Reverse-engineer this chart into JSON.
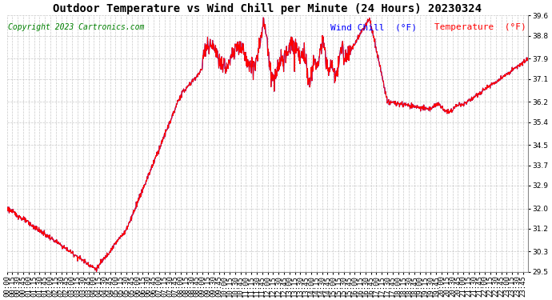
{
  "title": "Outdoor Temperature vs Wind Chill per Minute (24 Hours) 20230324",
  "copyright": "Copyright 2023 Cartronics.com",
  "legend_wind_chill": "Wind Chill  (°F)",
  "legend_temperature": "Temperature  (°F)",
  "wind_chill_color": "blue",
  "temperature_color": "red",
  "background_color": "white",
  "grid_color": "#bbbbbb",
  "ylim": [
    29.5,
    39.6
  ],
  "yticks": [
    29.5,
    30.3,
    31.2,
    32.0,
    32.9,
    33.7,
    34.5,
    35.4,
    36.2,
    37.1,
    37.9,
    38.8,
    39.6
  ],
  "title_fontsize": 10,
  "copyright_fontsize": 7,
  "legend_fontsize": 8,
  "tick_fontsize": 6.5,
  "line_width": 0.8
}
